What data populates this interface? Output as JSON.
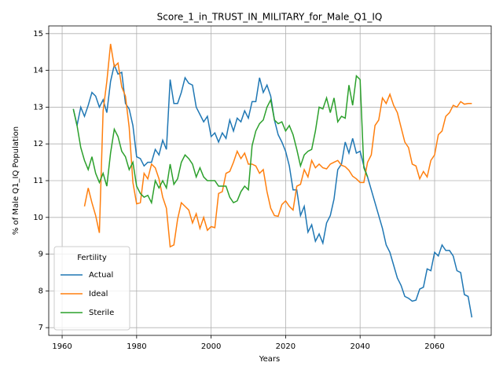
{
  "chart_data": {
    "type": "line",
    "title": "Score_1_in_TRUST_IN_MILITARY_for_Male_Q1_IQ",
    "x_label": "Years",
    "y_label": "% of Male Q1_IQ Population",
    "legend_title": "Fertility",
    "legend_position": "lower left",
    "grid": true,
    "xlim": [
      1956.4,
      2075.2
    ],
    "ylim": [
      6.79,
      15.21
    ],
    "xticks": [
      1960,
      1980,
      2000,
      2020,
      2040,
      2060
    ],
    "yticks": [
      7,
      8,
      9,
      10,
      11,
      12,
      13,
      14,
      15
    ],
    "x": [
      1963,
      1964,
      1965,
      1966,
      1967,
      1968,
      1969,
      1970,
      1971,
      1972,
      1973,
      1974,
      1975,
      1976,
      1977,
      1978,
      1979,
      1980,
      1981,
      1982,
      1983,
      1984,
      1985,
      1986,
      1987,
      1988,
      1989,
      1990,
      1991,
      1992,
      1993,
      1994,
      1995,
      1996,
      1997,
      1998,
      1999,
      2000,
      2001,
      2002,
      2003,
      2004,
      2005,
      2006,
      2007,
      2008,
      2009,
      2010,
      2011,
      2012,
      2013,
      2014,
      2015,
      2016,
      2017,
      2018,
      2019,
      2020,
      2021,
      2022,
      2023,
      2024,
      2025,
      2026,
      2027,
      2028,
      2029,
      2030,
      2031,
      2032,
      2033,
      2034,
      2035,
      2036,
      2037,
      2038,
      2039,
      2040,
      2041,
      2042,
      2043,
      2044,
      2045,
      2046,
      2047,
      2048,
      2049,
      2050,
      2051,
      2052,
      2053,
      2054,
      2055,
      2056,
      2057,
      2058,
      2059,
      2060,
      2061,
      2062,
      2063,
      2064,
      2065,
      2066,
      2067,
      2068,
      2069,
      2070
    ],
    "series": [
      {
        "name": "Actual",
        "color": "#1f77b4",
        "values": [
          12.95,
          12.5,
          13.0,
          12.75,
          13.05,
          13.4,
          13.3,
          13.0,
          13.2,
          12.85,
          13.7,
          14.15,
          13.9,
          13.95,
          13.1,
          12.95,
          12.5,
          11.65,
          11.6,
          11.4,
          11.5,
          11.5,
          11.85,
          11.7,
          12.1,
          11.85,
          13.75,
          13.1,
          13.1,
          13.4,
          13.8,
          13.65,
          13.6,
          13.0,
          12.8,
          12.6,
          12.75,
          12.2,
          12.3,
          12.05,
          12.3,
          12.15,
          12.65,
          12.35,
          12.7,
          12.6,
          12.9,
          12.7,
          13.15,
          13.15,
          13.8,
          13.4,
          13.6,
          13.3,
          12.65,
          12.25,
          12.05,
          11.8,
          11.4,
          10.75,
          10.75,
          10.05,
          10.3,
          9.6,
          9.8,
          9.35,
          9.55,
          9.3,
          9.85,
          10.05,
          10.5,
          11.3,
          11.45,
          12.05,
          11.75,
          12.15,
          11.75,
          11.8,
          11.4,
          11.1,
          10.75,
          10.4,
          10.05,
          9.7,
          9.25,
          9.05,
          8.7,
          8.35,
          8.15,
          7.85,
          7.8,
          7.72,
          7.75,
          8.05,
          8.1,
          8.6,
          8.55,
          9.05,
          8.95,
          9.25,
          9.1,
          9.1,
          8.95,
          8.55,
          8.5,
          7.9,
          7.85,
          7.28
        ]
      },
      {
        "name": "Ideal",
        "color": "#ff7f0e",
        "values": [
          null,
          null,
          null,
          10.3,
          10.8,
          10.4,
          10.05,
          9.58,
          12.9,
          13.7,
          14.72,
          14.1,
          14.2,
          13.55,
          13.3,
          12.45,
          10.95,
          10.37,
          10.4,
          11.2,
          11.05,
          11.45,
          11.35,
          11.05,
          10.55,
          10.25,
          9.2,
          9.25,
          9.95,
          10.4,
          10.3,
          10.2,
          9.85,
          10.1,
          9.7,
          10.0,
          9.65,
          9.75,
          9.72,
          10.65,
          10.7,
          11.2,
          11.25,
          11.5,
          11.8,
          11.6,
          11.75,
          11.45,
          11.45,
          11.4,
          11.2,
          11.3,
          10.7,
          10.25,
          10.05,
          10.03,
          10.35,
          10.45,
          10.3,
          10.2,
          10.85,
          10.9,
          11.3,
          11.1,
          11.55,
          11.35,
          11.45,
          11.35,
          11.32,
          11.45,
          11.5,
          11.55,
          11.42,
          11.38,
          11.28,
          11.12,
          11.05,
          10.95,
          10.95,
          11.5,
          11.7,
          12.5,
          12.65,
          13.25,
          13.1,
          13.35,
          13.05,
          12.85,
          12.45,
          12.05,
          11.9,
          11.45,
          11.4,
          11.05,
          11.25,
          11.1,
          11.55,
          11.7,
          12.25,
          12.35,
          12.75,
          12.85,
          13.05,
          13.0,
          13.15,
          13.08,
          13.1,
          13.1
        ]
      },
      {
        "name": "Sterile",
        "color": "#2ca02c",
        "values": [
          12.95,
          12.5,
          11.9,
          11.55,
          11.3,
          11.65,
          11.2,
          10.95,
          11.2,
          10.85,
          11.75,
          12.4,
          12.2,
          11.8,
          11.65,
          11.3,
          11.5,
          10.85,
          10.65,
          10.55,
          10.6,
          10.4,
          11.0,
          10.8,
          11.0,
          10.8,
          11.45,
          10.9,
          11.05,
          11.5,
          11.7,
          11.6,
          11.45,
          11.1,
          11.35,
          11.1,
          11.0,
          11.0,
          11.0,
          10.85,
          10.85,
          10.85,
          10.55,
          10.4,
          10.45,
          10.7,
          10.85,
          10.75,
          11.95,
          12.35,
          12.55,
          12.65,
          13.0,
          13.2,
          12.65,
          12.55,
          12.6,
          12.35,
          12.5,
          12.25,
          11.85,
          11.4,
          11.7,
          11.8,
          11.85,
          12.35,
          13.0,
          12.95,
          13.25,
          12.85,
          13.25,
          12.6,
          12.75,
          12.7,
          13.6,
          13.05,
          13.85,
          13.75,
          11.35,
          11.1,
          null,
          null,
          null,
          null,
          null,
          null,
          null,
          null,
          null,
          null,
          null,
          null,
          null,
          null,
          null,
          null,
          null,
          null,
          null,
          null,
          null,
          null,
          null,
          null,
          null,
          null,
          null,
          null
        ]
      }
    ]
  }
}
